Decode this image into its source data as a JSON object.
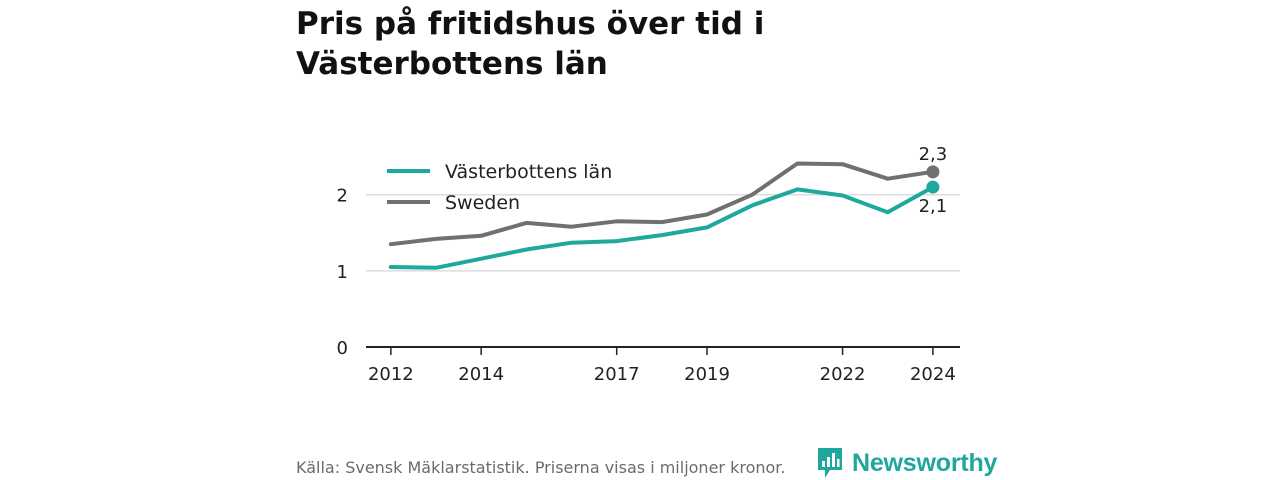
{
  "title": "Pris på fritidshus över tid i Västerbottens län",
  "source": "Källa: Svensk Mäklarstatistik. Priserna visas i miljoner kronor.",
  "brand": {
    "name": "Newsworthy",
    "icon": "newsworthy-logo-icon",
    "color": "#20a79b"
  },
  "chart_data": {
    "type": "line",
    "title": "Pris på fritidshus över tid i Västerbottens län",
    "x": [
      2012,
      2013,
      2014,
      2015,
      2016,
      2017,
      2018,
      2019,
      2020,
      2021,
      2022,
      2023,
      2024
    ],
    "series": [
      {
        "name": "Västerbottens län",
        "color": "#1fa99c",
        "values": [
          1.05,
          1.04,
          1.16,
          1.28,
          1.37,
          1.39,
          1.47,
          1.57,
          1.86,
          2.07,
          1.99,
          1.77,
          2.1
        ],
        "end_label": "2,1"
      },
      {
        "name": "Sweden",
        "color": "#707070",
        "values": [
          1.35,
          1.42,
          1.46,
          1.63,
          1.58,
          1.65,
          1.64,
          1.74,
          2.0,
          2.41,
          2.4,
          2.21,
          2.3
        ],
        "end_label": "2,3"
      }
    ],
    "xticks": [
      2012,
      2014,
      2017,
      2019,
      2022,
      2024
    ],
    "xtick_labels": [
      "2012",
      "2014",
      "2017",
      "2019",
      "2022",
      "2024"
    ],
    "yticks": [
      0,
      1,
      2
    ],
    "ytick_labels": [
      "0",
      "1",
      "2"
    ],
    "ylim": [
      0,
      2.6
    ],
    "xlim": [
      2011.45,
      2024.6
    ],
    "grid": true,
    "legend_position": "top-left",
    "xlabel": "",
    "ylabel": ""
  }
}
